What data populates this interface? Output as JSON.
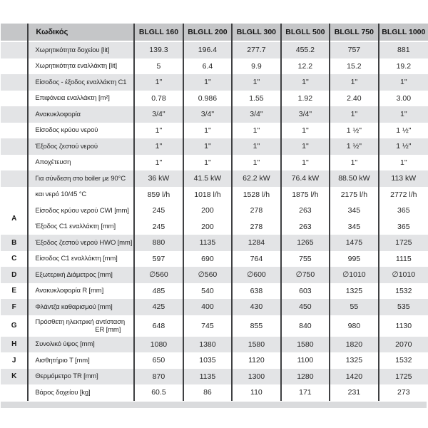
{
  "table": {
    "header": {
      "code_label": "Κωδικός",
      "models": [
        "BLGLL 160",
        "BLGLL 200",
        "BLGLL 300",
        "BLGLL 500",
        "BLGLL 750",
        "BLGLL 1000"
      ]
    },
    "rows": [
      {
        "letter": "",
        "label": "Χωρητικότητα δοχείου [lit]",
        "values": [
          "139.3",
          "196.4",
          "277.7",
          "455.2",
          "757",
          "881"
        ],
        "shaded": true
      },
      {
        "letter": "",
        "label": "Χωρητικότητα εναλλάκτη [lit]",
        "values": [
          "5",
          "6.4",
          "9.9",
          "12.2",
          "15.2",
          "19.2"
        ],
        "shaded": false
      },
      {
        "letter": "",
        "label": "Είσοδος - έξοδος εναλλάκτη C1",
        "values": [
          "1\"",
          "1\"",
          "1\"",
          "1\"",
          "1\"",
          "1\""
        ],
        "shaded": true
      },
      {
        "letter": "",
        "label": "Επιφάνεια εναλλάκτη [m²]",
        "values": [
          "0.78",
          "0.986",
          "1.55",
          "1.92",
          "2.40",
          "3.00"
        ],
        "shaded": false
      },
      {
        "letter": "",
        "label": "Ανακυκλοφορία",
        "values": [
          "3/4\"",
          "3/4\"",
          "3/4\"",
          "3/4\"",
          "1\"",
          "1\""
        ],
        "shaded": true
      },
      {
        "letter": "",
        "label": "Είσοδος κρύου νερού",
        "values": [
          "1\"",
          "1\"",
          "1\"",
          "1\"",
          "1 ½\"",
          "1 ½\""
        ],
        "shaded": false
      },
      {
        "letter": "",
        "label": "Έξοδος ζεστού νερού",
        "values": [
          "1\"",
          "1\"",
          "1\"",
          "1\"",
          "1 ½\"",
          "1 ½\""
        ],
        "shaded": true
      },
      {
        "letter": "",
        "label": "Αποχέτευση",
        "values": [
          "1\"",
          "1\"",
          "1\"",
          "1\"",
          "1\"",
          "1\""
        ],
        "shaded": false
      },
      {
        "letter": "",
        "label": "Για σύνδεση στο boiler με 90°C",
        "values": [
          "36 kW",
          "41.5 kW",
          "62.2 kW",
          "76.4 kW",
          "88.50 kW",
          "113 kW"
        ],
        "shaded": true
      },
      {
        "letter": "",
        "label": "και νερό 10/45 °C",
        "values": [
          "859 l/h",
          "1018 l/h",
          "1528 l/h",
          "1875 l/h",
          "2175 l/h",
          "2772 l/h"
        ],
        "shaded": false
      },
      {
        "letter": "A",
        "letter_span": 2,
        "label": "Είσοδος κρύου νερού CWI [mm]",
        "values": [
          "245",
          "200",
          "278",
          "263",
          "345",
          "365"
        ],
        "shaded": false
      },
      {
        "letter": null,
        "label": "Έξοδος C1 εναλλάκτη [mm]",
        "values": [
          "245",
          "200",
          "278",
          "263",
          "345",
          "365"
        ],
        "shaded": false
      },
      {
        "letter": "B",
        "label": "Έξοδος ζεστού νερού HWO [mm]",
        "values": [
          "880",
          "1135",
          "1284",
          "1265",
          "1475",
          "1725"
        ],
        "shaded": true
      },
      {
        "letter": "C",
        "label": "Είσοδος C1 εναλλάκτη [mm]",
        "values": [
          "597",
          "690",
          "764",
          "755",
          "995",
          "1115"
        ],
        "shaded": false
      },
      {
        "letter": "D",
        "label": "Εξωτερική Διάμετρος [mm]",
        "values": [
          "∅560",
          "∅560",
          "∅600",
          "∅750",
          "∅1010",
          "∅1010"
        ],
        "shaded": true
      },
      {
        "letter": "E",
        "label": "Ανακυκλοφορία R [mm]",
        "values": [
          "485",
          "540",
          "638",
          "603",
          "1325",
          "1532"
        ],
        "shaded": false
      },
      {
        "letter": "F",
        "label": "Φλάντζα καθαρισμού [mm]",
        "values": [
          "425",
          "400",
          "430",
          "450",
          "55",
          "535"
        ],
        "shaded": true
      },
      {
        "letter": "G",
        "label": "Πρόσθετη ηλεκτρική αντίσταση",
        "label_line2": "ER [mm]",
        "values": [
          "648",
          "745",
          "855",
          "840",
          "980",
          "1130"
        ],
        "shaded": false,
        "tall": true
      },
      {
        "letter": "H",
        "label": "Συνολικό ύψος [mm]",
        "values": [
          "1080",
          "1380",
          "1580",
          "1580",
          "1820",
          "2070"
        ],
        "shaded": true
      },
      {
        "letter": "J",
        "label": "Αισθητήριο T [mm]",
        "values": [
          "650",
          "1035",
          "1120",
          "1100",
          "1325",
          "1532"
        ],
        "shaded": false
      },
      {
        "letter": "K",
        "label": "Θερμόμετρο TR [mm]",
        "values": [
          "870",
          "1135",
          "1300",
          "1280",
          "1420",
          "1725"
        ],
        "shaded": true
      },
      {
        "letter": "",
        "label": "Βάρος δοχείου [kg]",
        "values": [
          "60.5",
          "86",
          "110",
          "171",
          "231",
          "273"
        ],
        "shaded": false
      }
    ],
    "colors": {
      "header_bg": "#c5c6c8",
      "stripe_bg": "#e3e4e6",
      "footer_band_bg": "#dadbdd",
      "divider": "#3f4042",
      "text": "#262626"
    }
  }
}
